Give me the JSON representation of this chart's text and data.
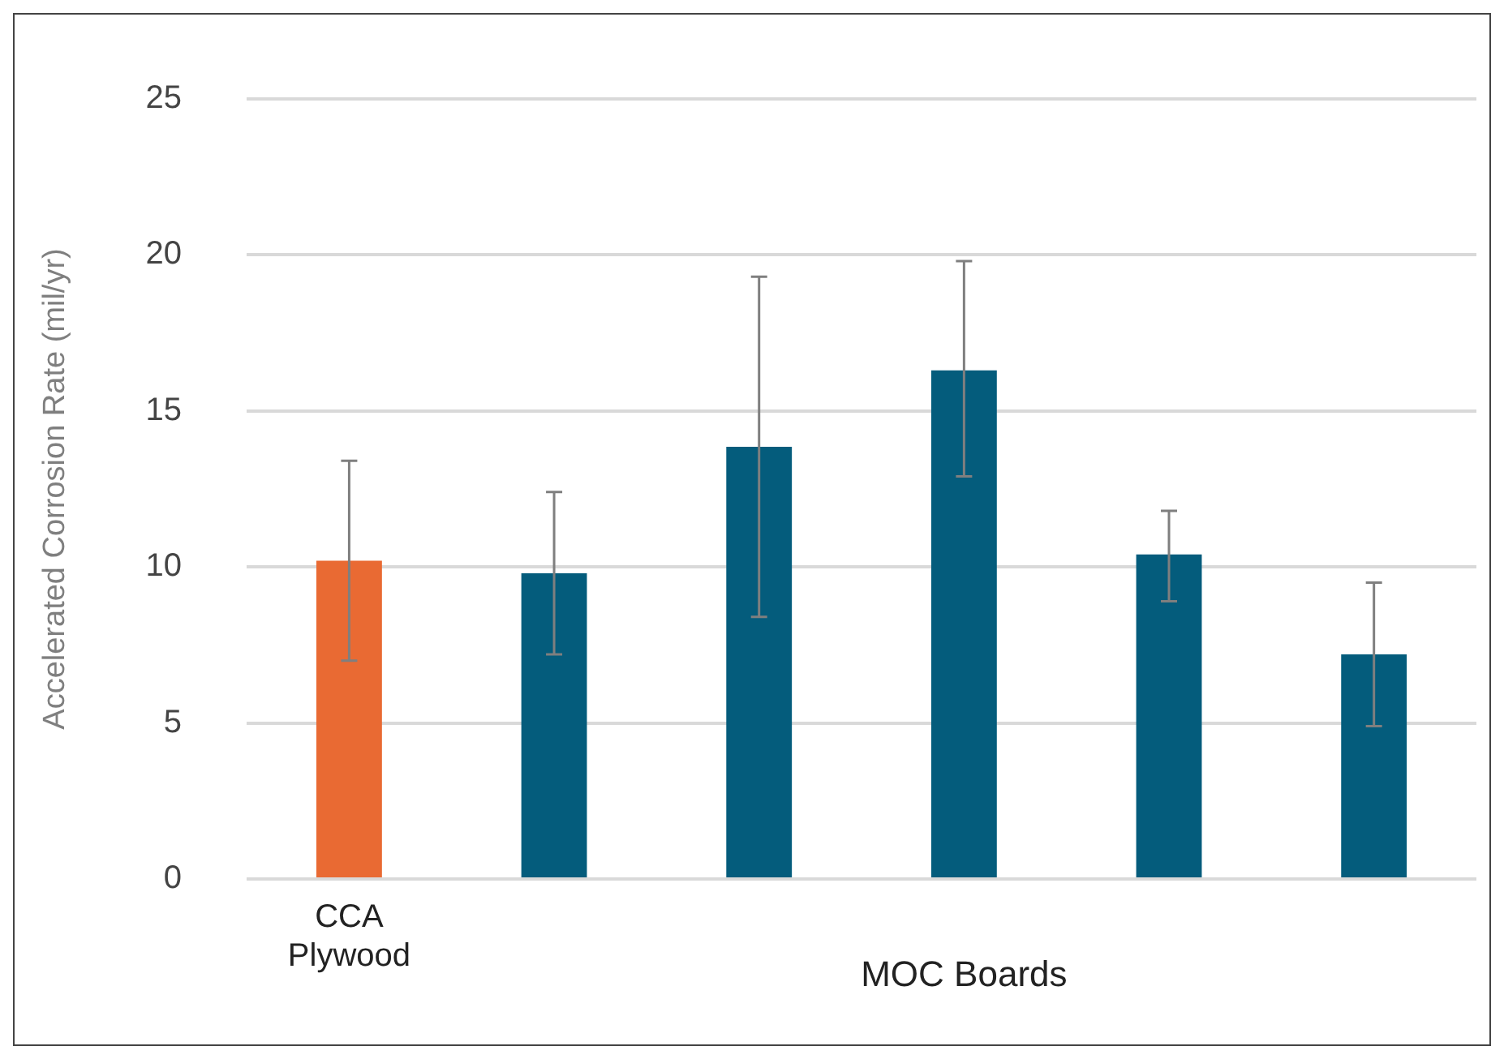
{
  "chart_data": {
    "type": "bar",
    "ylabel": "Accelerated Corrosion Rate (mil/yr)",
    "categories": [
      "CCA Plywood",
      null,
      null,
      null,
      null,
      null
    ],
    "values": [
      10.2,
      9.8,
      13.85,
      16.3,
      10.4,
      7.2
    ],
    "colors": [
      "#e96a33",
      "#045c7c",
      "#045c7c",
      "#045c7c",
      "#045c7c",
      "#045c7c"
    ],
    "errors": [
      [
        7.0,
        13.4
      ],
      [
        7.2,
        12.4
      ],
      [
        8.4,
        19.3
      ],
      [
        12.9,
        19.8
      ],
      [
        8.9,
        11.8
      ],
      [
        4.9,
        9.5
      ]
    ],
    "ylim": [
      0,
      25
    ],
    "yticks": [
      0,
      5,
      10,
      15,
      20,
      25
    ],
    "grid": "y",
    "annotations": [
      "MOC Boards"
    ]
  }
}
